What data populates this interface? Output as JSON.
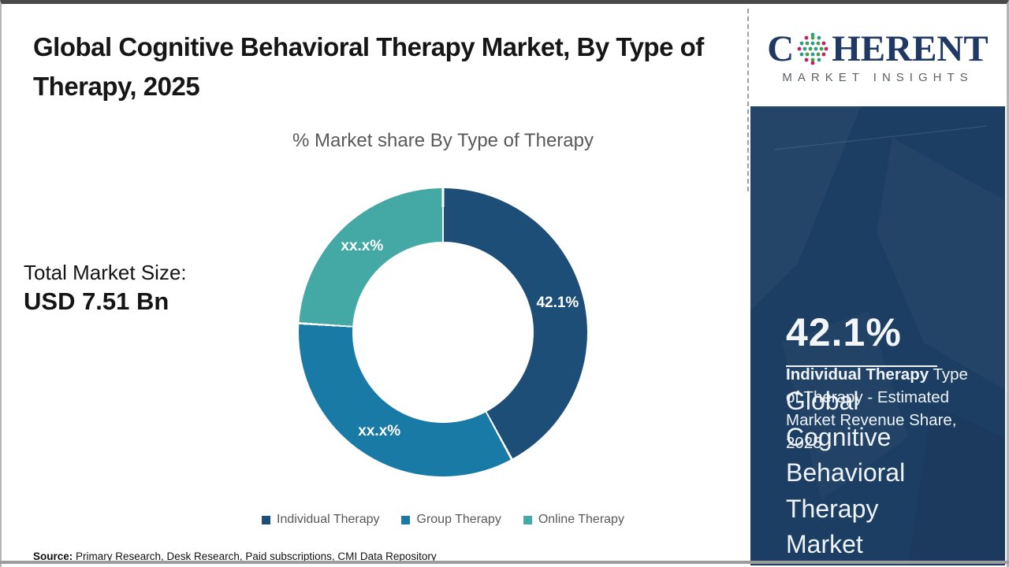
{
  "header": {
    "title": "Global Cognitive Behavioral Therapy Market, By Type of Therapy, 2025"
  },
  "chart_data": {
    "type": "pie",
    "subtype": "donut",
    "title": "% Market share By Type of Therapy",
    "categories": [
      "Individual Therapy",
      "Group Therapy",
      "Online Therapy"
    ],
    "values": [
      42.1,
      33.9,
      24.0
    ],
    "labels": [
      "42.1%",
      "xx.x%",
      "xx.x%"
    ],
    "colors": [
      "#1c4e78",
      "#1a7aa6",
      "#44a8a5"
    ],
    "start_angle_deg": 0,
    "direction": "clockwise",
    "legend_position": "bottom",
    "note": "only Individual Therapy share (42.1%) disclosed; other slices masked as xx.x%"
  },
  "totals": {
    "label": "Total Market Size:",
    "value": "USD 7.51 Bn"
  },
  "source": {
    "prefix": "Source:",
    "text": " Primary Research, Desk Research, Paid subscriptions, CMI Data Repository"
  },
  "logo": {
    "word_start": "C",
    "word_end": "HERENT",
    "subtitle": "MARKET INSIGHTS",
    "navy": "#1f3864",
    "dot_colors": [
      "#2a9d8f",
      "#43a047",
      "#c21f5f"
    ]
  },
  "side_panel": {
    "background": "#1d3e63",
    "share_value": "42.1%",
    "desc_bold": "Individual Therapy",
    "desc_rest": " Type of Therapy - Estimated Market Revenue Share, 2025",
    "market_lines": [
      "Global",
      "Cognitive",
      "Behavioral",
      "Therapy",
      "Market"
    ]
  }
}
